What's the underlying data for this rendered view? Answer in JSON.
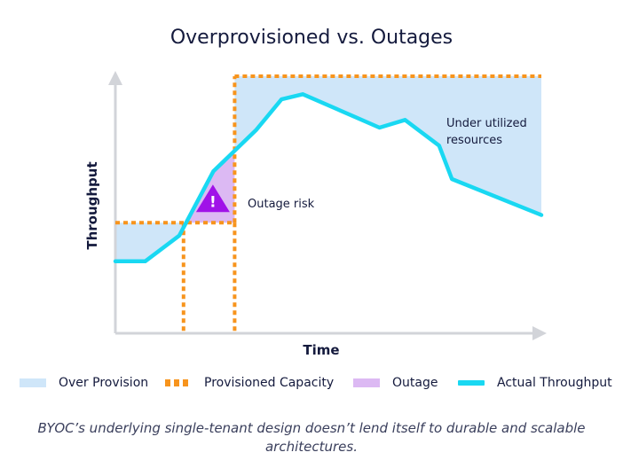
{
  "chart_data": {
    "type": "area",
    "title": "Overprovisioned vs. Outages",
    "xlabel": "Time",
    "ylabel": "Throughput",
    "xlim": [
      0,
      10
    ],
    "ylim": [
      0,
      10
    ],
    "grid": false,
    "legend_position": "bottom",
    "axis_arrows": true,
    "series": [
      {
        "name": "Actual Throughput",
        "color": "#19d8f2",
        "x": [
          0,
          0.7,
          1.5,
          2.3,
          3.3,
          3.9,
          4.4,
          6.2,
          6.8,
          7.6,
          7.9,
          10
        ],
        "y": [
          2.8,
          2.8,
          3.8,
          6.3,
          7.9,
          9.1,
          9.3,
          8.0,
          8.3,
          7.3,
          6.0,
          4.6
        ]
      },
      {
        "name": "Provisioned Capacity",
        "color": "#f7941d",
        "style": "dotted",
        "x": [
          0,
          1.6,
          1.6,
          2.8,
          2.8,
          10
        ],
        "y": [
          4.3,
          4.3,
          4.3,
          4.3,
          10,
          10
        ],
        "verticals_x": [
          1.6,
          2.8
        ]
      }
    ],
    "regions": [
      {
        "name": "Over Provision",
        "color": "#cfe6f9",
        "x_range": [
          0,
          1.6
        ],
        "note": "between capacity and actual"
      },
      {
        "name": "Outage",
        "color": "#dcb9f3",
        "x_range": [
          1.6,
          2.8
        ],
        "note": "actual above capacity"
      },
      {
        "name": "Over Provision",
        "color": "#cfe6f9",
        "x_range": [
          2.8,
          10
        ],
        "note": "between capacity and actual"
      }
    ],
    "annotations": [
      {
        "text": "Outage risk",
        "marker": "warning-triangle"
      },
      {
        "text": "Under utilized resources"
      }
    ]
  },
  "annotations": {
    "outage_risk": "Outage risk",
    "under_utilized": "Under utilized resources",
    "warning_symbol": "!"
  },
  "legend": [
    {
      "label": "Over Provision",
      "swatch": "over"
    },
    {
      "label": "Provisioned Capacity",
      "swatch": "prov"
    },
    {
      "label": "Outage",
      "swatch": "outage"
    },
    {
      "label": "Actual Throughput",
      "swatch": "actual"
    }
  ],
  "caption": "BYOC’s underlying single-tenant design doesn’t lend itself to durable and scalable architectures.",
  "colors": {
    "axis": "#d2d4d9",
    "over_provision": "#cfe6f9",
    "outage": "#dcb9f3",
    "capacity": "#f7941d",
    "actual": "#19d8f2",
    "warning": "#a012e8",
    "text": "#141a3d"
  }
}
